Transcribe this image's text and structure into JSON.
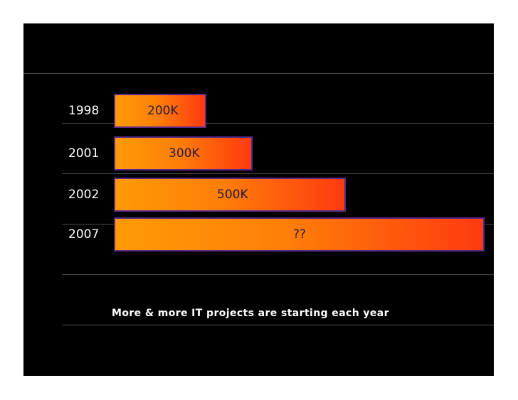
{
  "chart_data": {
    "type": "bar",
    "orientation": "horizontal",
    "categories": [
      "1998",
      "2001",
      "2002",
      "2007"
    ],
    "values": [
      200,
      300,
      500,
      800
    ],
    "data_labels": [
      "200K",
      "300K",
      "500K",
      "??"
    ],
    "title": "",
    "xlabel": "",
    "ylabel": "",
    "caption": "More & more IT projects are starting each year",
    "grid": true,
    "xlim": [
      0,
      800
    ]
  },
  "colors": {
    "background": "#000000",
    "bar_start": "#ff9a06",
    "bar_end": "#ff3a10",
    "bar_border": "#5a2a8a",
    "text": "#ffffff",
    "bar_text": "#241a3a"
  }
}
